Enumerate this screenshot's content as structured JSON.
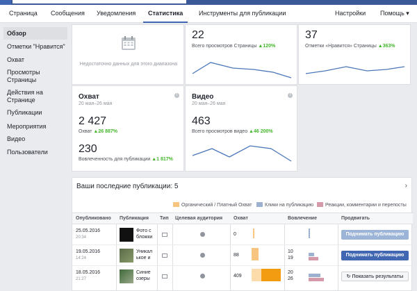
{
  "tabs": [
    {
      "label": "Страница"
    },
    {
      "label": "Сообщения"
    },
    {
      "label": "Уведомления"
    },
    {
      "label": "Статистика"
    },
    {
      "label": "Инструменты для публикации"
    },
    {
      "label": "Настройки"
    },
    {
      "label": "Помощь ▾"
    }
  ],
  "sidebar": {
    "items": [
      {
        "label": "Обзор"
      },
      {
        "label": "Отметки \"Нравится\""
      },
      {
        "label": "Охват"
      },
      {
        "label": "Просмотры Страницы"
      },
      {
        "label": "Действия на Странице"
      },
      {
        "label": "Публикации"
      },
      {
        "label": "Мероприятия"
      },
      {
        "label": "Видео"
      },
      {
        "label": "Пользователи"
      }
    ]
  },
  "cards": {
    "actions": {
      "nodata": "Недостаточно данных для этого диапазона"
    },
    "views": {
      "value": "22",
      "label": "Всего просмотров Страницы",
      "delta": "▲120%"
    },
    "likes": {
      "value": "37",
      "label": "Отметки «Нравится» Страницы",
      "delta": "▲363%"
    },
    "reach": {
      "title": "Охват",
      "range": "20 мая–26 мая",
      "value": "2 427",
      "label": "Охват",
      "delta": "▲26 887%",
      "value2": "230",
      "label2": "Вовлеченность для публикации",
      "delta2": "▲1 817%"
    },
    "video": {
      "title": "Видео",
      "range": "20 мая–26 мая",
      "value": "463",
      "label": "Всего просмотров видео",
      "delta": "▲46 200%"
    }
  },
  "pubs": {
    "title": "Ваши последние публикации: 5",
    "legend": [
      {
        "label": "Органический / Платный Охват",
        "color": "#f7c580"
      },
      {
        "label": "Клики на публикацию",
        "color": "#9cb0d0"
      },
      {
        "label": "Реакции, комментарии и перепосты",
        "color": "#d49aa9"
      }
    ],
    "headers": [
      "Опубликовано",
      "Публикация",
      "Тип",
      "Целевая аудитория",
      "Охват",
      "Вовлечение",
      "Продвигать"
    ],
    "rows": [
      {
        "date": "25.05.2016",
        "time": "20:34",
        "text1": "Фото с",
        "text2": "бложки",
        "reach": "0",
        "eng1": "",
        "eng2": "",
        "button": "Поднимать публикацию",
        "btn_style": "disabled",
        "reach_frac": 0.0,
        "eng_a": 0.0,
        "eng_b": 0.0
      },
      {
        "date": "19.05.2016",
        "time": "14:24",
        "text1": "Уникал",
        "text2": "ькое и",
        "reach": "88",
        "eng1": "10",
        "eng2": "19",
        "button": "Поднимать публикацию",
        "btn_style": "blue",
        "reach_frac": 0.2,
        "eng_a": 0.45,
        "eng_b": 0.8
      },
      {
        "date": "18.05.2016",
        "time": "21:27",
        "text1": "Синие",
        "text2": "озеры",
        "reach": "409",
        "eng1": "20",
        "eng2": "26",
        "button": "Показать результаты",
        "btn_style": "white",
        "reach_frac": 0.85,
        "eng_a": 0.9,
        "eng_b": 1.0
      }
    ]
  },
  "colors": {
    "accent": "#4267b2",
    "up": "#42b72a",
    "line": "#4a76b8"
  }
}
